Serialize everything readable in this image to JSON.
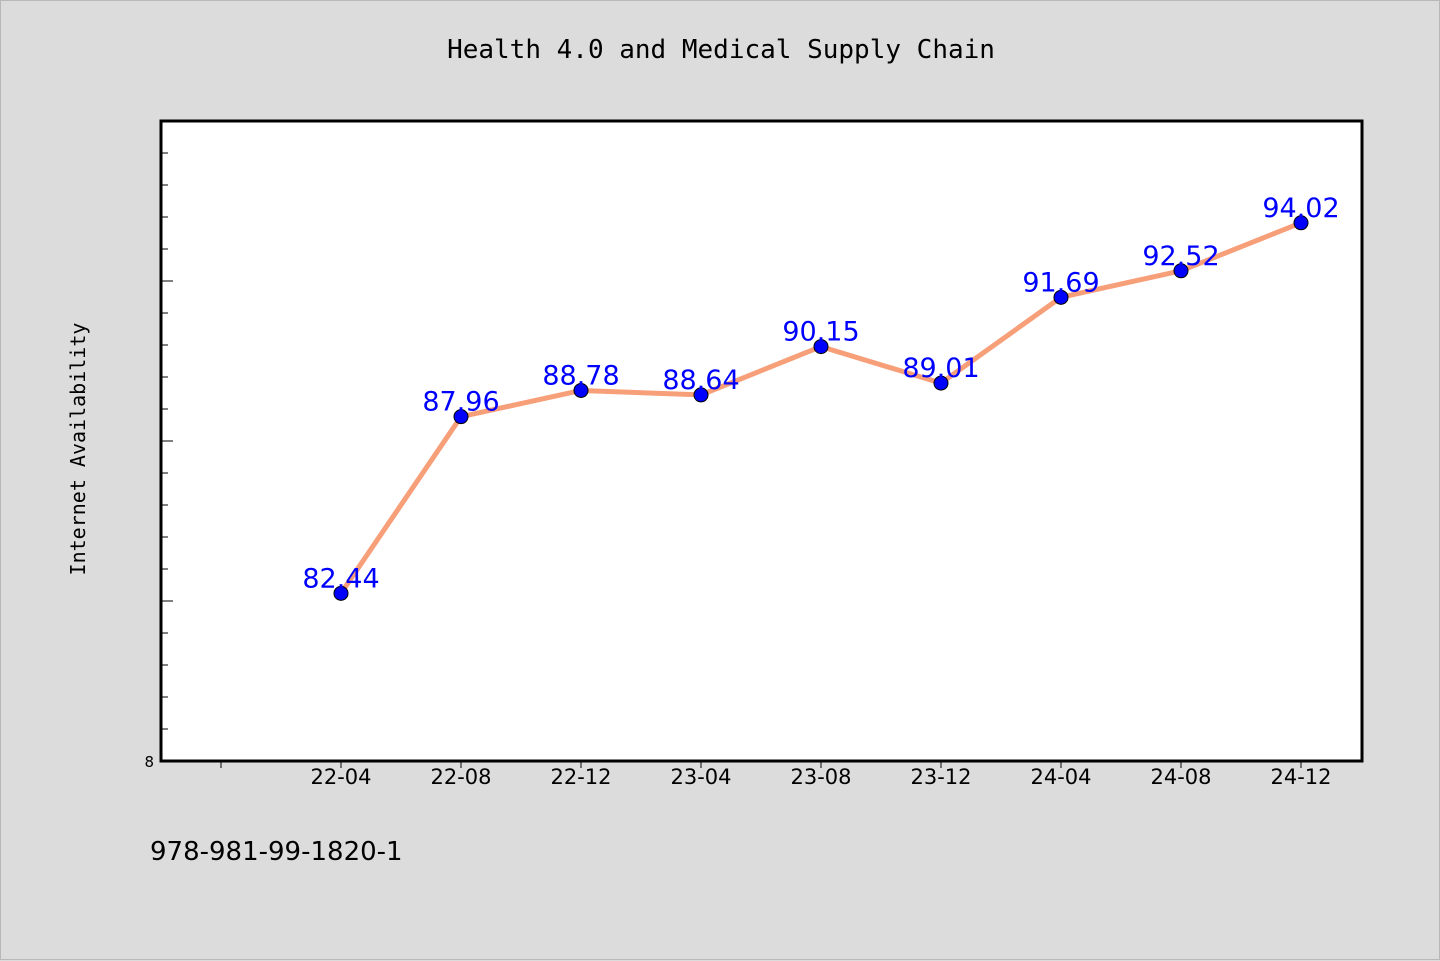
{
  "chart_data": {
    "type": "line",
    "title": "Health 4.0 and Medical Supply Chain",
    "xlabel": "",
    "ylabel": "Internet Availability",
    "categories": [
      "22-04",
      "22-08",
      "22-12",
      "23-04",
      "23-08",
      "23-12",
      "24-04",
      "24-08",
      "24-12"
    ],
    "series": [
      {
        "values": [
          82.44,
          87.96,
          88.78,
          88.64,
          90.15,
          89.01,
          91.69,
          92.52,
          94.02
        ],
        "line_color": "#f79f79",
        "marker_color": "#0000ff",
        "label_color": "#0000ff"
      }
    ],
    "y_tick_label": "8",
    "ylim": [
      77.2,
      97.2
    ],
    "grid": false,
    "legend": "none"
  },
  "footer": {
    "code": "978-981-99-1820-1"
  },
  "colors": {
    "background": "#dcdcdc",
    "plot_background": "#ffffff",
    "axis": "#000000"
  }
}
